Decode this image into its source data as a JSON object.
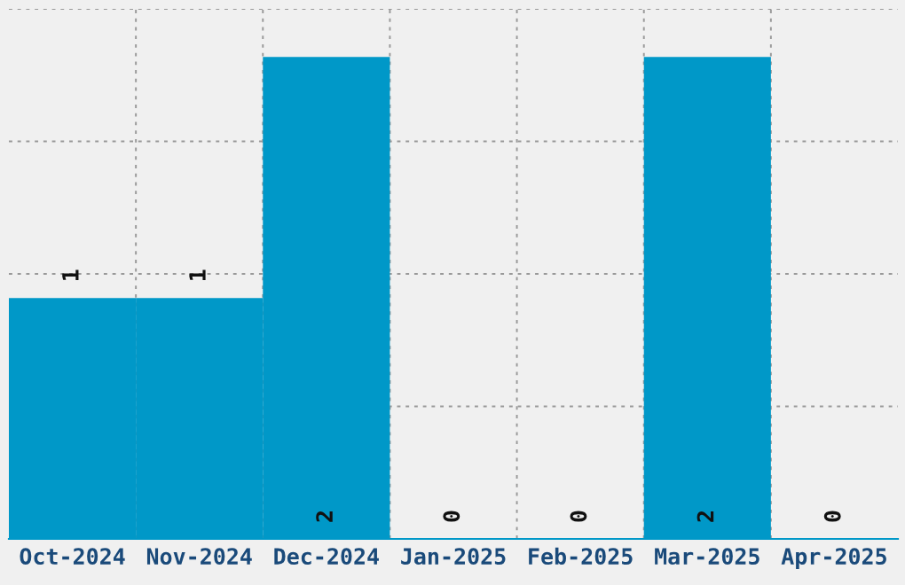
{
  "chart_data": {
    "type": "bar",
    "categories": [
      "Oct-2024",
      "Nov-2024",
      "Dec-2024",
      "Jan-2025",
      "Feb-2025",
      "Mar-2025",
      "Apr-2025"
    ],
    "values": [
      1,
      1,
      2,
      0,
      0,
      2,
      0
    ],
    "color": "#0098c8",
    "ylim": [
      0,
      2.2
    ],
    "yticks": [
      {
        "value": 0,
        "label": null
      },
      {
        "value": 0.55,
        "label": null
      },
      {
        "value": 1.1,
        "label": null
      },
      {
        "value": 1.65,
        "label": null
      },
      {
        "value": 2.2,
        "label": null
      }
    ],
    "grid": true,
    "data_labels": true
  }
}
